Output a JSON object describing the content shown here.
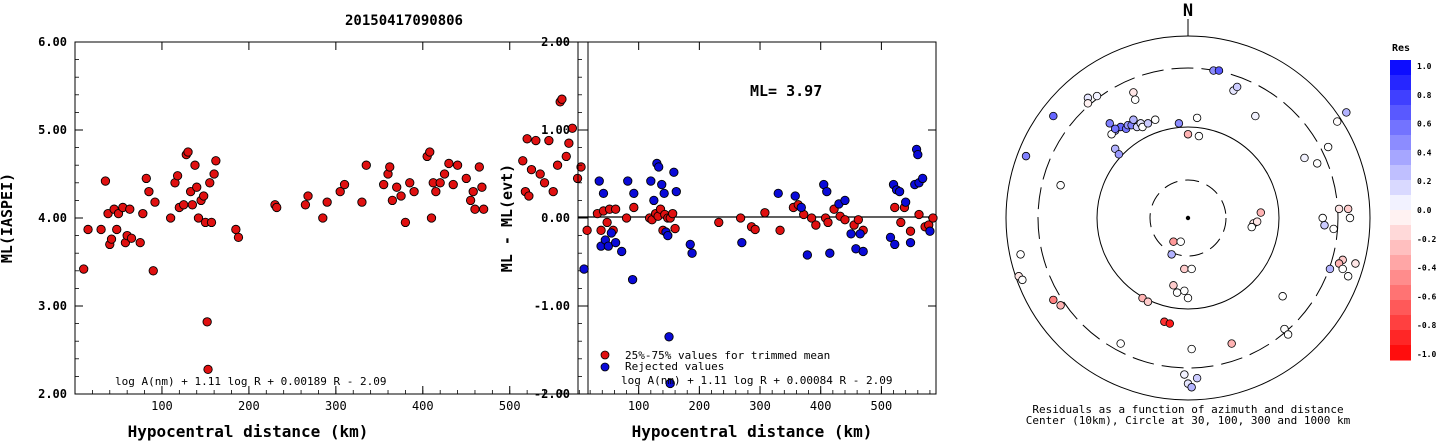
{
  "figure": {
    "title": "20150417090806"
  },
  "chart_data": [
    {
      "type": "scatter",
      "id": "ml_vs_distance",
      "xlabel": "Hypocentral distance (km)",
      "ylabel": "ML(IASPEI)",
      "xlim": [
        0,
        590
      ],
      "ylim": [
        2.0,
        6.0
      ],
      "xticks": [
        "100",
        "200",
        "300",
        "400",
        "500"
      ],
      "yticks": [
        "2.00",
        "3.00",
        "4.00",
        "5.00",
        "6.00"
      ],
      "formula": "log A(nm) + 1.11 log R + 0.00189 R - 2.09",
      "marker_color": "#e01010",
      "points": [
        [
          10,
          3.42
        ],
        [
          15,
          3.87
        ],
        [
          30,
          3.87
        ],
        [
          35,
          4.42
        ],
        [
          38,
          4.05
        ],
        [
          40,
          3.7
        ],
        [
          42,
          3.76
        ],
        [
          45,
          4.1
        ],
        [
          48,
          3.87
        ],
        [
          50,
          4.05
        ],
        [
          55,
          4.12
        ],
        [
          58,
          3.72
        ],
        [
          60,
          3.8
        ],
        [
          63,
          4.1
        ],
        [
          65,
          3.77
        ],
        [
          75,
          3.72
        ],
        [
          78,
          4.05
        ],
        [
          82,
          4.45
        ],
        [
          85,
          4.3
        ],
        [
          90,
          3.4
        ],
        [
          92,
          4.18
        ],
        [
          110,
          4.0
        ],
        [
          115,
          4.4
        ],
        [
          118,
          4.48
        ],
        [
          120,
          4.12
        ],
        [
          125,
          4.15
        ],
        [
          128,
          4.72
        ],
        [
          130,
          4.75
        ],
        [
          133,
          4.3
        ],
        [
          135,
          4.15
        ],
        [
          138,
          4.6
        ],
        [
          140,
          4.35
        ],
        [
          142,
          4.0
        ],
        [
          145,
          4.2
        ],
        [
          148,
          4.25
        ],
        [
          150,
          3.95
        ],
        [
          152,
          2.82
        ],
        [
          153,
          2.28
        ],
        [
          155,
          4.4
        ],
        [
          157,
          3.95
        ],
        [
          160,
          4.5
        ],
        [
          162,
          4.65
        ],
        [
          185,
          3.87
        ],
        [
          188,
          3.78
        ],
        [
          230,
          4.15
        ],
        [
          232,
          4.12
        ],
        [
          265,
          4.15
        ],
        [
          268,
          4.25
        ],
        [
          285,
          4.0
        ],
        [
          290,
          4.18
        ],
        [
          305,
          4.3
        ],
        [
          310,
          4.38
        ],
        [
          330,
          4.18
        ],
        [
          335,
          4.6
        ],
        [
          355,
          4.38
        ],
        [
          360,
          4.5
        ],
        [
          362,
          4.58
        ],
        [
          365,
          4.2
        ],
        [
          370,
          4.35
        ],
        [
          375,
          4.25
        ],
        [
          380,
          3.95
        ],
        [
          385,
          4.4
        ],
        [
          390,
          4.3
        ],
        [
          405,
          4.7
        ],
        [
          408,
          4.75
        ],
        [
          410,
          4.0
        ],
        [
          412,
          4.4
        ],
        [
          415,
          4.3
        ],
        [
          420,
          4.4
        ],
        [
          425,
          4.5
        ],
        [
          430,
          4.62
        ],
        [
          435,
          4.38
        ],
        [
          440,
          4.6
        ],
        [
          450,
          4.45
        ],
        [
          455,
          4.2
        ],
        [
          458,
          4.3
        ],
        [
          460,
          4.1
        ],
        [
          465,
          4.58
        ],
        [
          468,
          4.35
        ],
        [
          470,
          4.1
        ],
        [
          515,
          4.65
        ],
        [
          518,
          4.3
        ],
        [
          520,
          4.9
        ],
        [
          522,
          4.25
        ],
        [
          525,
          4.55
        ],
        [
          530,
          4.88
        ],
        [
          535,
          4.5
        ],
        [
          540,
          4.4
        ],
        [
          545,
          4.88
        ],
        [
          550,
          4.3
        ],
        [
          555,
          4.6
        ],
        [
          558,
          5.32
        ],
        [
          560,
          5.35
        ],
        [
          565,
          4.7
        ],
        [
          568,
          4.85
        ],
        [
          572,
          5.02
        ],
        [
          578,
          4.45
        ],
        [
          582,
          4.58
        ]
      ]
    },
    {
      "type": "scatter",
      "id": "residual_vs_distance",
      "xlabel": "Hypocentral distance (km)",
      "ylabel": "ML - ML(evt)",
      "xlim": [
        0,
        590
      ],
      "ylim": [
        -2.0,
        2.0
      ],
      "xticks": [
        "100",
        "200",
        "300",
        "400",
        "500"
      ],
      "yticks": [
        "-2.00",
        "-1.00",
        "0.00",
        "1.00",
        "2.00"
      ],
      "annotation": "ML= 3.97",
      "formula": "log A(nm) + 1.11 log R + 0.00084 R - 2.09",
      "legend": [
        {
          "label": "25%-75% values for trimmed mean",
          "color": "#e01010"
        },
        {
          "label": "Rejected values",
          "color": "#0a0ad8"
        }
      ],
      "red_points": [
        [
          15,
          -0.14
        ],
        [
          32,
          0.05
        ],
        [
          38,
          -0.14
        ],
        [
          42,
          0.08
        ],
        [
          48,
          -0.05
        ],
        [
          52,
          0.1
        ],
        [
          58,
          -0.14
        ],
        [
          62,
          0.1
        ],
        [
          80,
          0.0
        ],
        [
          92,
          0.12
        ],
        [
          118,
          0.0
        ],
        [
          122,
          -0.02
        ],
        [
          128,
          0.05
        ],
        [
          132,
          0.02
        ],
        [
          136,
          0.1
        ],
        [
          140,
          -0.14
        ],
        [
          143,
          0.04
        ],
        [
          148,
          0.0
        ],
        [
          152,
          0.0
        ],
        [
          156,
          0.05
        ],
        [
          160,
          -0.12
        ],
        [
          232,
          -0.05
        ],
        [
          268,
          0.0
        ],
        [
          286,
          -0.1
        ],
        [
          292,
          -0.13
        ],
        [
          308,
          0.06
        ],
        [
          333,
          -0.14
        ],
        [
          355,
          0.12
        ],
        [
          363,
          0.15
        ],
        [
          372,
          0.04
        ],
        [
          385,
          0.0
        ],
        [
          392,
          -0.08
        ],
        [
          408,
          0.0
        ],
        [
          412,
          -0.05
        ],
        [
          422,
          0.1
        ],
        [
          432,
          0.02
        ],
        [
          440,
          -0.02
        ],
        [
          455,
          -0.08
        ],
        [
          462,
          -0.02
        ],
        [
          470,
          -0.14
        ],
        [
          522,
          0.12
        ],
        [
          532,
          -0.05
        ],
        [
          538,
          0.12
        ],
        [
          548,
          -0.15
        ],
        [
          562,
          0.04
        ],
        [
          572,
          -0.1
        ],
        [
          578,
          -0.08
        ],
        [
          585,
          0.0
        ]
      ],
      "blue_points": [
        [
          10,
          -0.58
        ],
        [
          35,
          0.42
        ],
        [
          38,
          -0.32
        ],
        [
          42,
          0.28
        ],
        [
          45,
          -0.25
        ],
        [
          50,
          -0.32
        ],
        [
          55,
          -0.17
        ],
        [
          62,
          -0.28
        ],
        [
          72,
          -0.38
        ],
        [
          82,
          0.42
        ],
        [
          90,
          -0.7
        ],
        [
          92,
          0.28
        ],
        [
          120,
          0.42
        ],
        [
          125,
          0.2
        ],
        [
          130,
          0.62
        ],
        [
          133,
          0.58
        ],
        [
          138,
          0.38
        ],
        [
          142,
          0.28
        ],
        [
          145,
          -0.16
        ],
        [
          148,
          -0.2
        ],
        [
          150,
          -1.35
        ],
        [
          152,
          -1.88
        ],
        [
          158,
          0.52
        ],
        [
          162,
          0.3
        ],
        [
          185,
          -0.3
        ],
        [
          188,
          -0.4
        ],
        [
          270,
          -0.28
        ],
        [
          330,
          0.28
        ],
        [
          358,
          0.25
        ],
        [
          368,
          0.12
        ],
        [
          378,
          -0.42
        ],
        [
          405,
          0.38
        ],
        [
          410,
          0.3
        ],
        [
          415,
          -0.4
        ],
        [
          430,
          0.16
        ],
        [
          440,
          0.2
        ],
        [
          450,
          -0.18
        ],
        [
          458,
          -0.35
        ],
        [
          465,
          -0.18
        ],
        [
          470,
          -0.38
        ],
        [
          515,
          -0.22
        ],
        [
          520,
          0.38
        ],
        [
          522,
          -0.3
        ],
        [
          525,
          0.32
        ],
        [
          530,
          0.3
        ],
        [
          540,
          0.18
        ],
        [
          548,
          -0.28
        ],
        [
          555,
          0.38
        ],
        [
          558,
          0.78
        ],
        [
          560,
          0.72
        ],
        [
          562,
          0.4
        ],
        [
          568,
          0.45
        ],
        [
          580,
          -0.15
        ]
      ]
    },
    {
      "type": "scatter",
      "id": "azimuth_residual_map",
      "north_label": "N",
      "colorbar_title": "Res",
      "colorbar_ticks": [
        "1.0",
        "0.8",
        "0.6",
        "0.4",
        "0.2",
        "0.0",
        "-0.2",
        "-0.4",
        "-0.6",
        "-0.8",
        "-1.0"
      ],
      "caption_line1": "Residuals as a function of azimuth and distance",
      "caption_line2": "Center (10km), Circle at 30, 100, 300 and 1000 km",
      "stations": [
        [
          -0.55,
          -0.66,
          0.1
        ],
        [
          -0.5,
          -0.67,
          0.05
        ],
        [
          -0.3,
          -0.69,
          -0.1
        ],
        [
          -0.29,
          -0.65,
          0
        ],
        [
          0.14,
          -0.81,
          0.45
        ],
        [
          0.17,
          -0.81,
          0.65
        ],
        [
          0.25,
          -0.7,
          0.1
        ],
        [
          0.27,
          -0.72,
          0.2
        ],
        [
          0.82,
          -0.53,
          -0.01
        ],
        [
          0.87,
          -0.58,
          0.3
        ],
        [
          -0.89,
          -0.34,
          0.5
        ],
        [
          -0.7,
          -0.18,
          0
        ],
        [
          0.77,
          -0.39,
          0
        ],
        [
          0.64,
          -0.33,
          0.05
        ],
        [
          0.71,
          -0.3,
          0
        ],
        [
          -0.43,
          -0.52,
          0.5
        ],
        [
          -0.4,
          -0.48,
          0.4
        ],
        [
          -0.37,
          -0.5,
          0.6
        ],
        [
          -0.34,
          -0.49,
          0.55
        ],
        [
          -0.33,
          -0.51,
          0.4
        ],
        [
          -0.31,
          -0.51,
          0.5
        ],
        [
          -0.3,
          -0.54,
          0.3
        ],
        [
          -0.28,
          -0.5,
          0.15
        ],
        [
          -0.26,
          -0.52,
          0.1
        ],
        [
          -0.25,
          -0.5,
          0.0
        ],
        [
          -0.22,
          -0.52,
          0.2
        ],
        [
          -0.18,
          -0.54,
          0.0
        ],
        [
          -0.42,
          -0.46,
          0.0
        ],
        [
          0.0,
          -0.46,
          -0.3
        ],
        [
          0.06,
          -0.45,
          0.0
        ],
        [
          -0.4,
          -0.38,
          0.3
        ],
        [
          -0.38,
          -0.35,
          0.4
        ],
        [
          0.4,
          -0.03,
          -0.3
        ],
        [
          0.36,
          0.03,
          -0.1
        ],
        [
          0.38,
          0.02,
          -0.1
        ],
        [
          0.35,
          0.05,
          0.0
        ],
        [
          0.74,
          0.0,
          0.0
        ],
        [
          0.75,
          0.04,
          0.2
        ],
        [
          0.8,
          0.06,
          0.0
        ],
        [
          0.83,
          -0.05,
          -0.1
        ],
        [
          0.88,
          -0.05,
          -0.2
        ],
        [
          0.89,
          0.0,
          0.0
        ],
        [
          0.85,
          0.23,
          -0.2
        ],
        [
          0.83,
          0.25,
          -0.3
        ],
        [
          0.85,
          0.28,
          0.0
        ],
        [
          0.92,
          0.25,
          -0.1
        ],
        [
          0.88,
          0.32,
          0.0
        ],
        [
          0.78,
          0.28,
          0.3
        ],
        [
          -0.08,
          0.13,
          -0.4
        ],
        [
          -0.04,
          0.13,
          0.0
        ],
        [
          -0.09,
          0.2,
          0.3
        ],
        [
          -0.02,
          0.28,
          -0.2
        ],
        [
          0.02,
          0.28,
          0.0
        ],
        [
          -0.08,
          0.37,
          -0.2
        ],
        [
          -0.06,
          0.41,
          0.0
        ],
        [
          -0.02,
          0.4,
          0.0
        ],
        [
          0.0,
          0.44,
          0.0
        ],
        [
          -0.25,
          0.44,
          -0.3
        ],
        [
          -0.22,
          0.46,
          -0.2
        ],
        [
          0.52,
          0.43,
          0.0
        ],
        [
          -0.92,
          0.2,
          0.0
        ],
        [
          -0.93,
          0.32,
          -0.1
        ],
        [
          -0.91,
          0.34,
          0.0
        ],
        [
          -0.74,
          0.45,
          -0.5
        ],
        [
          -0.7,
          0.48,
          -0.3
        ],
        [
          -0.13,
          0.57,
          -0.8
        ],
        [
          -0.1,
          0.58,
          -0.9
        ],
        [
          0.53,
          0.61,
          0.0
        ],
        [
          0.55,
          0.64,
          0.0
        ],
        [
          -0.37,
          0.69,
          0.0
        ],
        [
          0.02,
          0.72,
          0.0
        ],
        [
          0.24,
          0.69,
          -0.3
        ],
        [
          -0.0,
          0.91,
          0.1
        ],
        [
          0.02,
          0.93,
          0.3
        ],
        [
          0.05,
          0.88,
          0.2
        ],
        [
          -0.02,
          0.86,
          0.05
        ],
        [
          -0.74,
          -0.56,
          0.6
        ],
        [
          -0.55,
          -0.63,
          -0.05
        ],
        [
          0.05,
          -0.55,
          0.0
        ],
        [
          -0.4,
          -0.49,
          0.55
        ],
        [
          -0.05,
          -0.52,
          0.45
        ],
        [
          0.37,
          -0.56,
          0.05
        ]
      ]
    }
  ]
}
